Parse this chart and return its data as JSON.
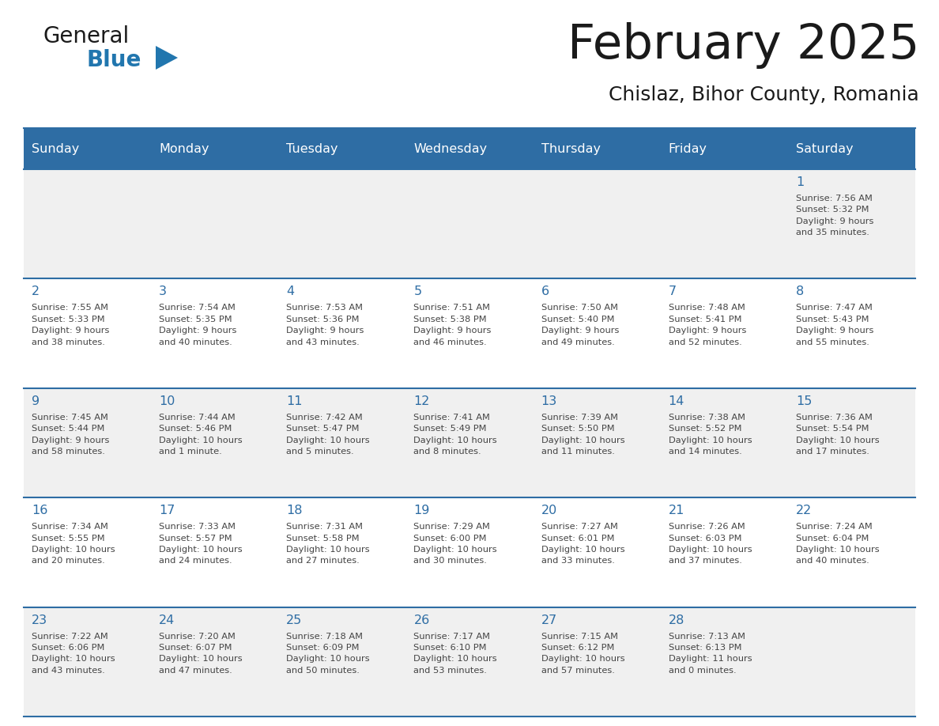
{
  "title": "February 2025",
  "subtitle": "Chislaz, Bihor County, Romania",
  "header_bg": "#2E6DA4",
  "header_text_color": "#FFFFFF",
  "cell_bg_odd": "#F0F0F0",
  "cell_bg_even": "#FFFFFF",
  "day_number_color": "#2E6DA4",
  "cell_text_color": "#444444",
  "border_color": "#2E6DA4",
  "weekdays": [
    "Sunday",
    "Monday",
    "Tuesday",
    "Wednesday",
    "Thursday",
    "Friday",
    "Saturday"
  ],
  "weeks": [
    [
      {
        "day": null,
        "text": ""
      },
      {
        "day": null,
        "text": ""
      },
      {
        "day": null,
        "text": ""
      },
      {
        "day": null,
        "text": ""
      },
      {
        "day": null,
        "text": ""
      },
      {
        "day": null,
        "text": ""
      },
      {
        "day": 1,
        "text": "Sunrise: 7:56 AM\nSunset: 5:32 PM\nDaylight: 9 hours\nand 35 minutes."
      }
    ],
    [
      {
        "day": 2,
        "text": "Sunrise: 7:55 AM\nSunset: 5:33 PM\nDaylight: 9 hours\nand 38 minutes."
      },
      {
        "day": 3,
        "text": "Sunrise: 7:54 AM\nSunset: 5:35 PM\nDaylight: 9 hours\nand 40 minutes."
      },
      {
        "day": 4,
        "text": "Sunrise: 7:53 AM\nSunset: 5:36 PM\nDaylight: 9 hours\nand 43 minutes."
      },
      {
        "day": 5,
        "text": "Sunrise: 7:51 AM\nSunset: 5:38 PM\nDaylight: 9 hours\nand 46 minutes."
      },
      {
        "day": 6,
        "text": "Sunrise: 7:50 AM\nSunset: 5:40 PM\nDaylight: 9 hours\nand 49 minutes."
      },
      {
        "day": 7,
        "text": "Sunrise: 7:48 AM\nSunset: 5:41 PM\nDaylight: 9 hours\nand 52 minutes."
      },
      {
        "day": 8,
        "text": "Sunrise: 7:47 AM\nSunset: 5:43 PM\nDaylight: 9 hours\nand 55 minutes."
      }
    ],
    [
      {
        "day": 9,
        "text": "Sunrise: 7:45 AM\nSunset: 5:44 PM\nDaylight: 9 hours\nand 58 minutes."
      },
      {
        "day": 10,
        "text": "Sunrise: 7:44 AM\nSunset: 5:46 PM\nDaylight: 10 hours\nand 1 minute."
      },
      {
        "day": 11,
        "text": "Sunrise: 7:42 AM\nSunset: 5:47 PM\nDaylight: 10 hours\nand 5 minutes."
      },
      {
        "day": 12,
        "text": "Sunrise: 7:41 AM\nSunset: 5:49 PM\nDaylight: 10 hours\nand 8 minutes."
      },
      {
        "day": 13,
        "text": "Sunrise: 7:39 AM\nSunset: 5:50 PM\nDaylight: 10 hours\nand 11 minutes."
      },
      {
        "day": 14,
        "text": "Sunrise: 7:38 AM\nSunset: 5:52 PM\nDaylight: 10 hours\nand 14 minutes."
      },
      {
        "day": 15,
        "text": "Sunrise: 7:36 AM\nSunset: 5:54 PM\nDaylight: 10 hours\nand 17 minutes."
      }
    ],
    [
      {
        "day": 16,
        "text": "Sunrise: 7:34 AM\nSunset: 5:55 PM\nDaylight: 10 hours\nand 20 minutes."
      },
      {
        "day": 17,
        "text": "Sunrise: 7:33 AM\nSunset: 5:57 PM\nDaylight: 10 hours\nand 24 minutes."
      },
      {
        "day": 18,
        "text": "Sunrise: 7:31 AM\nSunset: 5:58 PM\nDaylight: 10 hours\nand 27 minutes."
      },
      {
        "day": 19,
        "text": "Sunrise: 7:29 AM\nSunset: 6:00 PM\nDaylight: 10 hours\nand 30 minutes."
      },
      {
        "day": 20,
        "text": "Sunrise: 7:27 AM\nSunset: 6:01 PM\nDaylight: 10 hours\nand 33 minutes."
      },
      {
        "day": 21,
        "text": "Sunrise: 7:26 AM\nSunset: 6:03 PM\nDaylight: 10 hours\nand 37 minutes."
      },
      {
        "day": 22,
        "text": "Sunrise: 7:24 AM\nSunset: 6:04 PM\nDaylight: 10 hours\nand 40 minutes."
      }
    ],
    [
      {
        "day": 23,
        "text": "Sunrise: 7:22 AM\nSunset: 6:06 PM\nDaylight: 10 hours\nand 43 minutes."
      },
      {
        "day": 24,
        "text": "Sunrise: 7:20 AM\nSunset: 6:07 PM\nDaylight: 10 hours\nand 47 minutes."
      },
      {
        "day": 25,
        "text": "Sunrise: 7:18 AM\nSunset: 6:09 PM\nDaylight: 10 hours\nand 50 minutes."
      },
      {
        "day": 26,
        "text": "Sunrise: 7:17 AM\nSunset: 6:10 PM\nDaylight: 10 hours\nand 53 minutes."
      },
      {
        "day": 27,
        "text": "Sunrise: 7:15 AM\nSunset: 6:12 PM\nDaylight: 10 hours\nand 57 minutes."
      },
      {
        "day": 28,
        "text": "Sunrise: 7:13 AM\nSunset: 6:13 PM\nDaylight: 11 hours\nand 0 minutes."
      },
      {
        "day": null,
        "text": ""
      }
    ]
  ],
  "logo_general_color": "#1a1a1a",
  "logo_blue_color": "#2176AE",
  "logo_triangle_color": "#2176AE",
  "title_color": "#1a1a1a",
  "subtitle_color": "#1a1a1a"
}
